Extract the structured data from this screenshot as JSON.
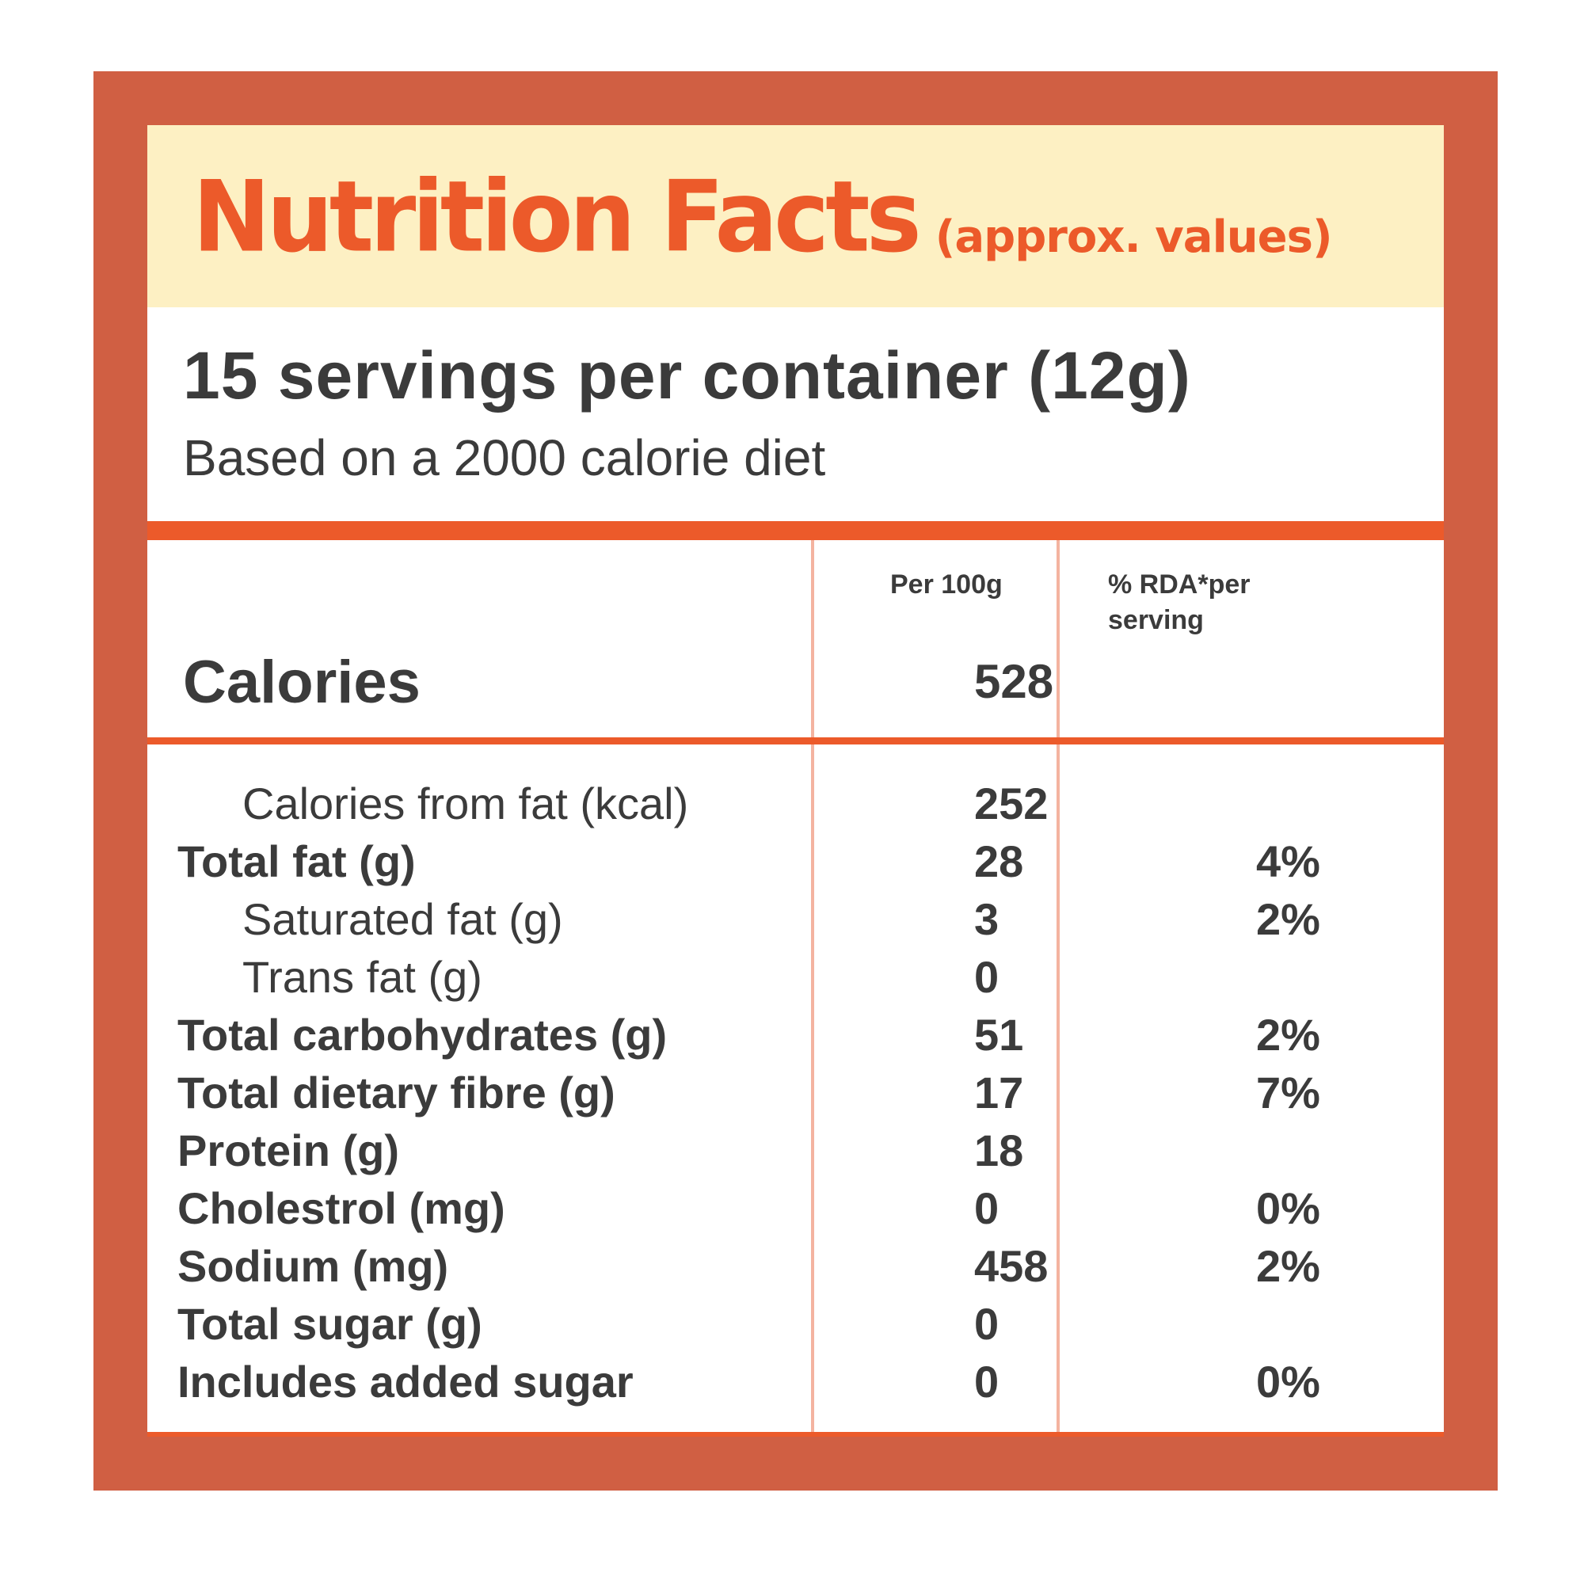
{
  "header": {
    "title": "Nutrition Facts",
    "subtitle": "(approx. values)"
  },
  "servings": "15 servings per container (12g)",
  "diet_note": "Based on a 2000 calorie diet",
  "columns": {
    "per100g": "Per 100g",
    "rda_line1": "% RDA*per",
    "rda_line2": "serving"
  },
  "calories": {
    "label": "Calories",
    "value": "528"
  },
  "rows": [
    {
      "name": "Calories from fat (kcal)",
      "value": "252",
      "rda": ""
    },
    {
      "name": "Total fat (g)",
      "value": "28",
      "rda": "4%"
    },
    {
      "name": "Saturated fat (g)",
      "value": "3",
      "rda": "2%"
    },
    {
      "name": "Trans fat (g)",
      "value": "0",
      "rda": ""
    },
    {
      "name": "Total carbohydrates (g)",
      "value": "51",
      "rda": "2%"
    },
    {
      "name": "Total dietary fibre (g)",
      "value": "17",
      "rda": "7%"
    },
    {
      "name": "Protein (g)",
      "value": "18",
      "rda": ""
    },
    {
      "name": "Cholestrol (mg)",
      "value": "0",
      "rda": "0%"
    },
    {
      "name": "Sodium (mg)",
      "value": "458",
      "rda": "2%"
    },
    {
      "name": "Total sugar (g)",
      "value": "0",
      "rda": ""
    },
    {
      "name": "Includes added sugar",
      "value": "0",
      "rda": "0%"
    }
  ],
  "colors": {
    "frame": "#d05f43",
    "accent": "#ec5a2a",
    "header_bg": "#fdf0c3",
    "text": "#3b3b3b"
  }
}
